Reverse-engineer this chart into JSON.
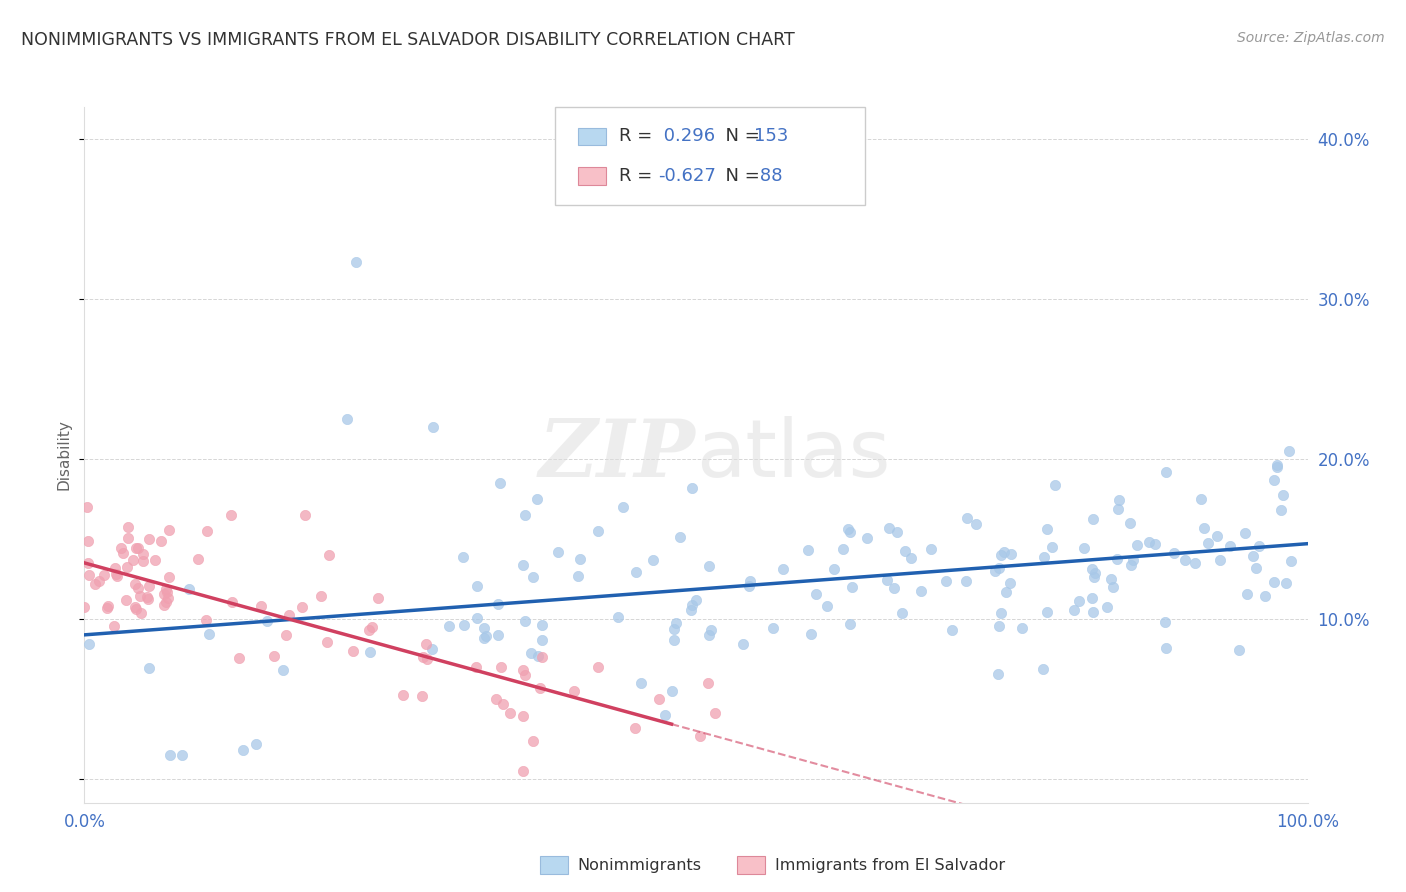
{
  "title": "NONIMMIGRANTS VS IMMIGRANTS FROM EL SALVADOR DISABILITY CORRELATION CHART",
  "source": "Source: ZipAtlas.com",
  "ylabel": "Disability",
  "xlim": [
    0,
    1.0
  ],
  "ylim": [
    -0.015,
    0.42
  ],
  "yticks": [
    0.0,
    0.1,
    0.2,
    0.3,
    0.4
  ],
  "ytick_labels": [
    "",
    "10.0%",
    "20.0%",
    "30.0%",
    "40.0%"
  ],
  "xticks": [
    0.0,
    0.25,
    0.5,
    0.75,
    1.0
  ],
  "xtick_labels": [
    "0.0%",
    "",
    "",
    "",
    "100.0%"
  ],
  "color_nonimm": "#a8c8e8",
  "color_imm": "#f0a0b0",
  "line_color_nonimm": "#2060b0",
  "line_color_imm": "#d04060",
  "R_nonimm": 0.296,
  "N_nonimm": 153,
  "R_imm": -0.627,
  "N_imm": 88,
  "watermark_zip": "ZIP",
  "watermark_atlas": "atlas",
  "background_color": "#ffffff",
  "grid_color": "#cccccc",
  "legend_box_color_nonimm": "#b8d8f0",
  "legend_box_color_imm": "#f8c0c8",
  "axis_color": "#4472c4",
  "title_color": "#333333",
  "ylabel_color": "#666666"
}
